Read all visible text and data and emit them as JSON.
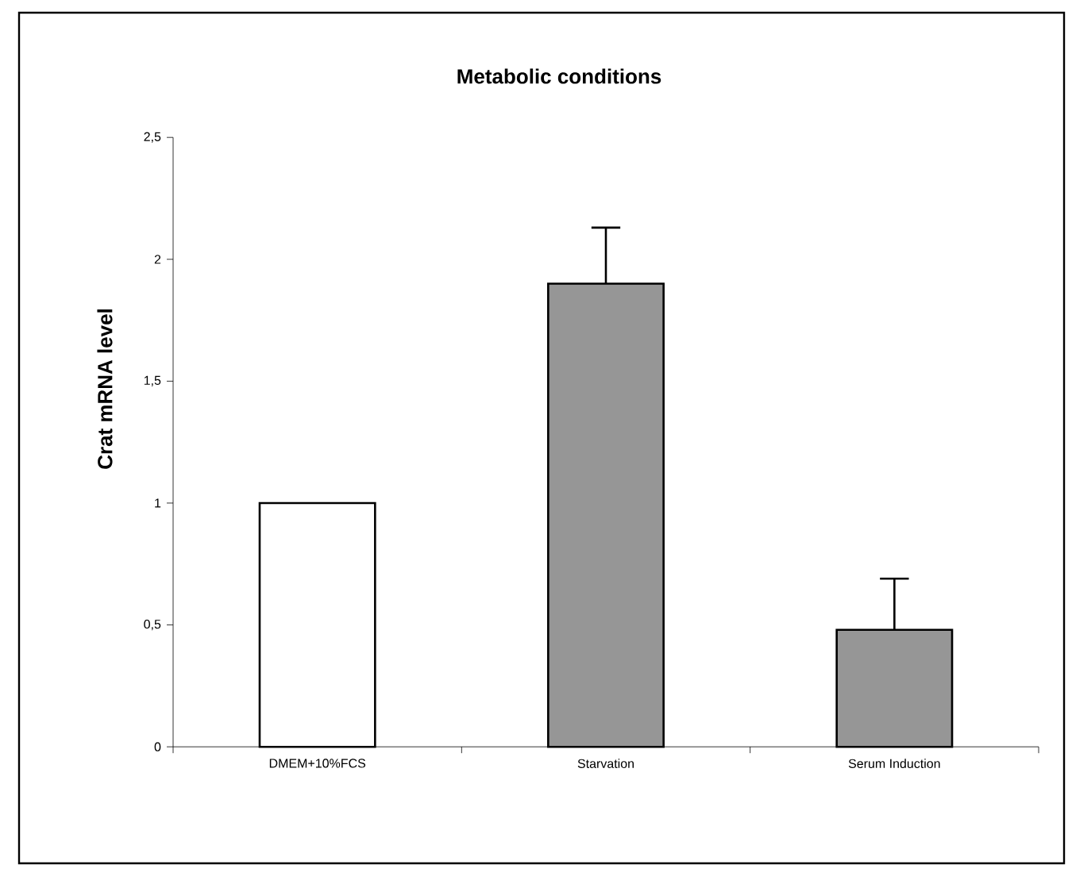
{
  "chart_data": {
    "type": "bar",
    "title": "Metabolic conditions",
    "ylabel": "Crat mRNA level",
    "categories": [
      "DMEM+10%FCS",
      "Starvation",
      "Serum Induction"
    ],
    "values": [
      1,
      1.9,
      0.48
    ],
    "colors": [
      "#ffffff",
      "#969696",
      "#969696"
    ],
    "errors": [
      null,
      [
        1.9,
        2.13
      ],
      [
        0.48,
        0.69
      ]
    ],
    "ylim": [
      0,
      2.5
    ],
    "yticks": [
      0,
      {
        "value": 0.5,
        "label": "0,5"
      },
      1,
      {
        "value": 1.5,
        "label": "1,5"
      },
      2,
      {
        "value": 2.5,
        "label": "2,5"
      }
    ],
    "grid": false
  }
}
